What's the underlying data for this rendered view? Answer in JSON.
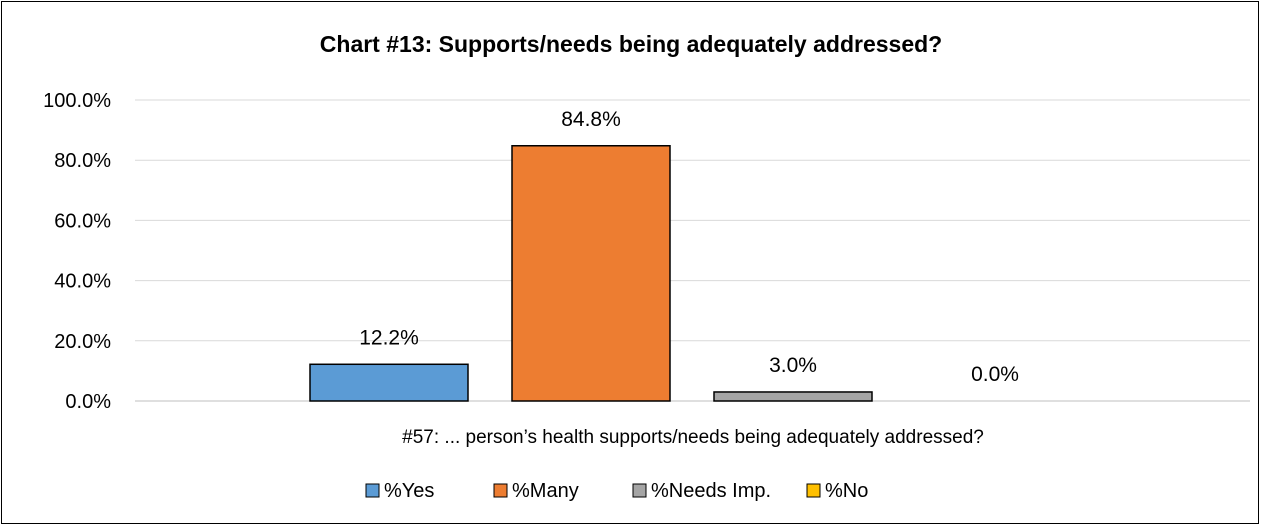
{
  "chart_data": {
    "type": "bar",
    "title": "Chart #13: Supports/needs being adequately addressed?",
    "xlabel": "#57: ... person’s health supports/needs being adequately addressed?",
    "ylabel": "",
    "ylim": [
      0,
      100
    ],
    "y_ticks": [
      "0.0%",
      "20.0%",
      "40.0%",
      "60.0%",
      "80.0%",
      "100.0%"
    ],
    "grid": true,
    "legend_position": "bottom",
    "categories": [
      "#57: ... person’s health supports/needs being adequately addressed?"
    ],
    "series": [
      {
        "name": "%Yes",
        "values": [
          12.2
        ],
        "label": "12.2%",
        "color": "#5b9bd5"
      },
      {
        "name": "%Many",
        "values": [
          84.8
        ],
        "label": "84.8%",
        "color": "#ed7d31"
      },
      {
        "name": "%Needs Imp.",
        "values": [
          3.0
        ],
        "label": "3.0%",
        "color": "#a5a5a5"
      },
      {
        "name": "%No",
        "values": [
          0.0
        ],
        "label": "0.0%",
        "color": "#ffc000"
      }
    ]
  }
}
